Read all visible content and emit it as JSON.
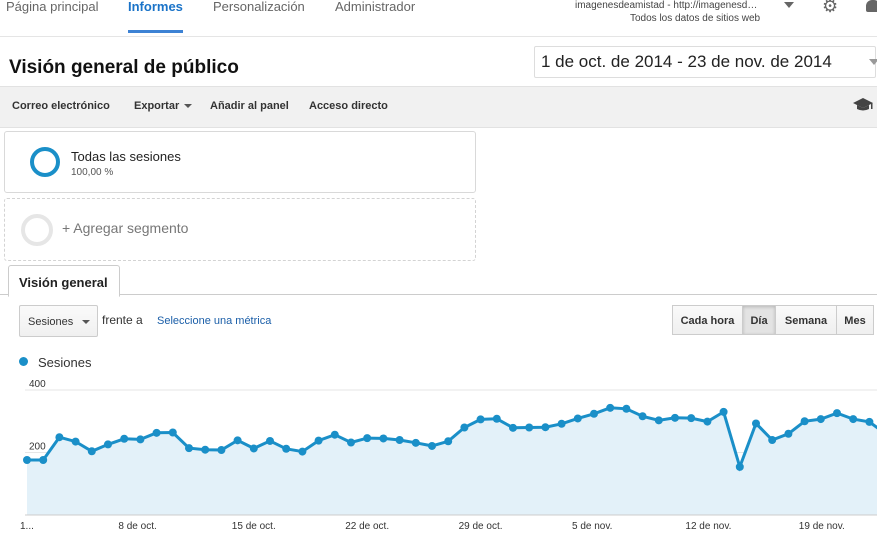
{
  "nav": {
    "items": [
      "Página principal",
      "Informes",
      "Personalización",
      "Administrador"
    ],
    "active_index": 1,
    "account_name": "imagenesdeamistad - http://imagenesd…",
    "account_view": "Todos los datos de sitios web"
  },
  "header": {
    "title": "Visión general de público",
    "date_range": "1 de oct. de 2014 - 23 de nov. de 2014"
  },
  "toolbar": {
    "email": "Correo electrónico",
    "export": "Exportar",
    "add_dashboard": "Añadir al panel",
    "shortcut": "Acceso directo"
  },
  "segments": {
    "active_name": "Todas las sesiones",
    "active_pct": "100,00 %",
    "add_label": "+ Agregar segmento"
  },
  "tab": {
    "label": "Visión general"
  },
  "chart_controls": {
    "metric": "Sesiones",
    "versus": "frente a",
    "select_metric": "Seleccione una métrica",
    "granularity": [
      "Cada hora",
      "Día",
      "Semana",
      "Mes"
    ],
    "active_granularity": 1
  },
  "colors": {
    "accent": "#1a8fc8",
    "area": "#e3f1f9",
    "nav_active": "#1a73c8"
  },
  "chart_data": {
    "type": "area",
    "series": [
      {
        "name": "Sesiones",
        "values": [
          176,
          176,
          249,
          235,
          204,
          226,
          244,
          242,
          263,
          264,
          214,
          209,
          208,
          239,
          213,
          237,
          212,
          203,
          238,
          257,
          232,
          246,
          245,
          240,
          231,
          221,
          236,
          280,
          306,
          308,
          279,
          280,
          281,
          292,
          309,
          324,
          343,
          340,
          316,
          303,
          311,
          310,
          299,
          330,
          154,
          293,
          240,
          260,
          300,
          307,
          326,
          307,
          298,
          260
        ]
      }
    ],
    "x_start": "1 de oct.",
    "x_tick_labels": [
      "1...",
      "8 de oct.",
      "15 de oct.",
      "22 de oct.",
      "29 de oct.",
      "5 de nov.",
      "12 de nov.",
      "19 de nov."
    ],
    "x_tick_indices": [
      0,
      7,
      14,
      21,
      28,
      35,
      42,
      49
    ],
    "y_tick_labels": [
      "200",
      "400"
    ],
    "y_ticks": [
      200,
      400
    ],
    "ylim": [
      0,
      400
    ],
    "grid": true
  }
}
